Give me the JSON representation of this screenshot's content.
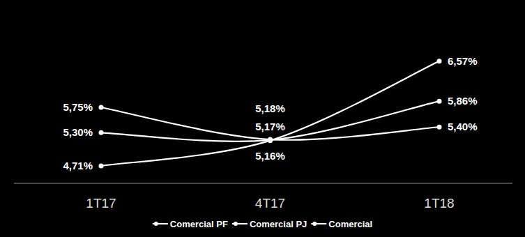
{
  "chart_data": {
    "type": "line",
    "categories": [
      "1T17",
      "4T17",
      "1T18"
    ],
    "series": [
      {
        "name": "Comercial PF",
        "color": "#ffffff",
        "marker": "circle",
        "values": [
          5.75,
          5.18,
          5.4
        ],
        "value_labels": [
          "5,75%",
          "5,18%",
          "5,40%"
        ]
      },
      {
        "name": "Comercial PJ",
        "color": "#ffffff",
        "marker": "circle",
        "values": [
          4.71,
          5.16,
          6.57
        ],
        "value_labels": [
          "4,71%",
          "5,16%",
          "6,57%"
        ]
      },
      {
        "name": "Comercial",
        "color": "#ffffff",
        "marker": "circle",
        "values": [
          5.3,
          5.17,
          5.86
        ],
        "value_labels": [
          "5,30%",
          "5,17%",
          "5,86%"
        ]
      }
    ],
    "ylim": [
      4.4,
      7.41
    ],
    "data_labels": true,
    "tick_labels": "x",
    "legend": "bottom"
  }
}
